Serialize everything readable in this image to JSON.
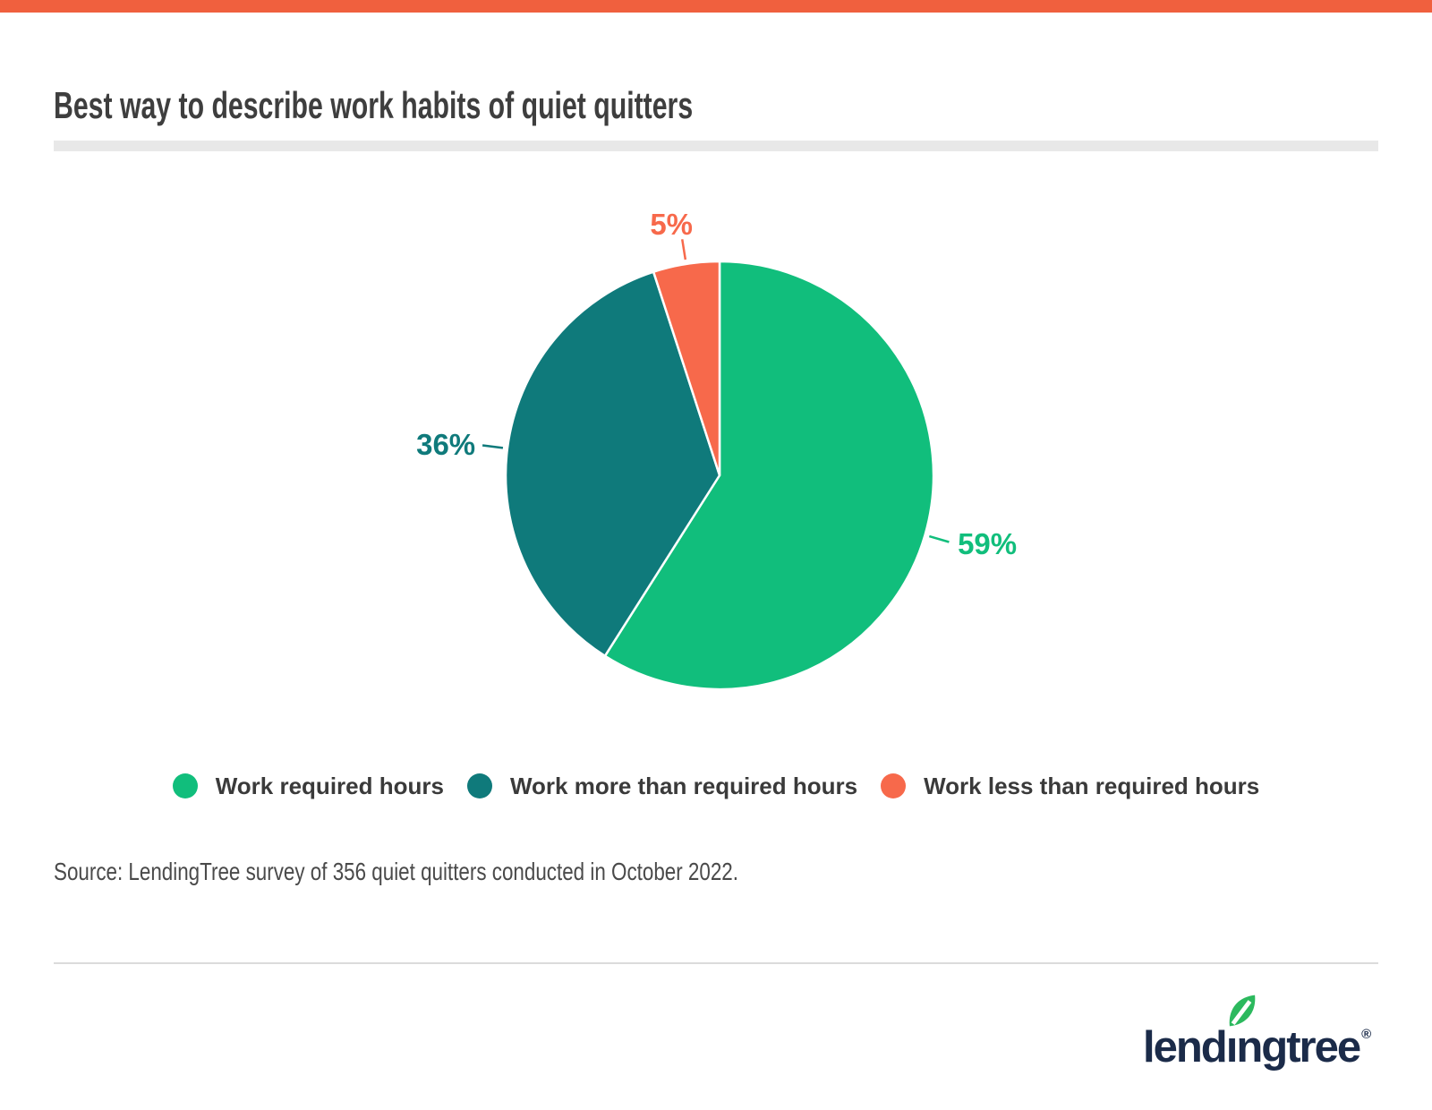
{
  "page": {
    "background_color": "#ffffff",
    "top_accent_bar_color": "#F0603E",
    "title_divider_color": "#E8E8E8",
    "footer_divider_color": "#DBDBDB"
  },
  "header": {
    "title": "Best way to describe work habits of quiet quitters"
  },
  "chart_data": {
    "type": "pie",
    "title": "Best way to describe work habits of quiet quitters",
    "start_angle_deg": 0,
    "direction": "clockwise",
    "labels_style": "outside-with-ticks",
    "legend_position": "bottom",
    "slices": [
      {
        "label": "Work required hours",
        "value": 59,
        "display_label": "59%",
        "color": "#11BE7C"
      },
      {
        "label": "Work more than required hours",
        "value": 36,
        "display_label": "36%",
        "color": "#0F7A7B"
      },
      {
        "label": "Work less than required hours",
        "value": 5,
        "display_label": "5%",
        "color": "#F7694B"
      }
    ]
  },
  "source_note": "Source: LendingTree survey of 356 quiet quitters conducted in October 2022.",
  "footer_logo": {
    "brand_text": "lendingtree",
    "registered_mark": "®",
    "wordmark_color": "#1B2B49",
    "leaf_color": "#2CB95E"
  }
}
